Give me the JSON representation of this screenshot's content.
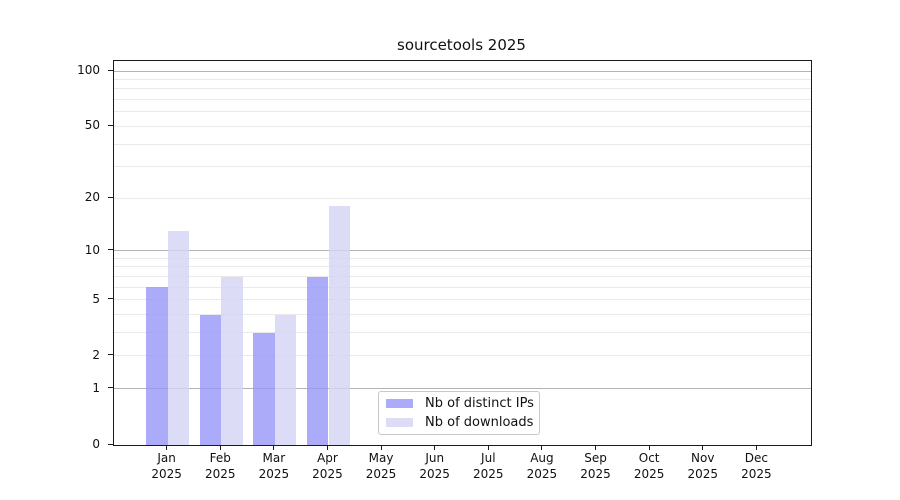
{
  "title": "sourcetools 2025",
  "chart_data": {
    "type": "bar",
    "title": "sourcetools 2025",
    "categories": [
      "Jan",
      "Feb",
      "Mar",
      "Apr",
      "May",
      "Jun",
      "Jul",
      "Aug",
      "Sep",
      "Oct",
      "Nov",
      "Dec"
    ],
    "year_label": "2025",
    "series": [
      {
        "name": "Nb of distinct IPs",
        "color": "#9998f8",
        "values": [
          6,
          4,
          3,
          7,
          0,
          0,
          0,
          0,
          0,
          0,
          0,
          0
        ]
      },
      {
        "name": "Nb of downloads",
        "color": "#d4d4f4",
        "values": [
          13,
          7,
          4,
          18,
          0,
          0,
          0,
          0,
          0,
          0,
          0,
          0
        ]
      }
    ],
    "xlabel": "",
    "ylabel": "",
    "yscale": "log1p",
    "ylim": [
      0,
      113
    ],
    "ytick_labels": [
      0,
      1,
      2,
      5,
      10,
      20,
      50,
      100
    ],
    "major_gridlines": [
      1,
      10,
      100
    ],
    "minor_gridlines": [
      2,
      3,
      4,
      5,
      6,
      7,
      8,
      9,
      20,
      30,
      40,
      50,
      60,
      70,
      80,
      90
    ],
    "grid": "on",
    "legend_position": "lower center-left inside plot"
  },
  "legend": {
    "items": [
      {
        "label": "Nb of distinct IPs"
      },
      {
        "label": "Nb of downloads"
      }
    ]
  }
}
